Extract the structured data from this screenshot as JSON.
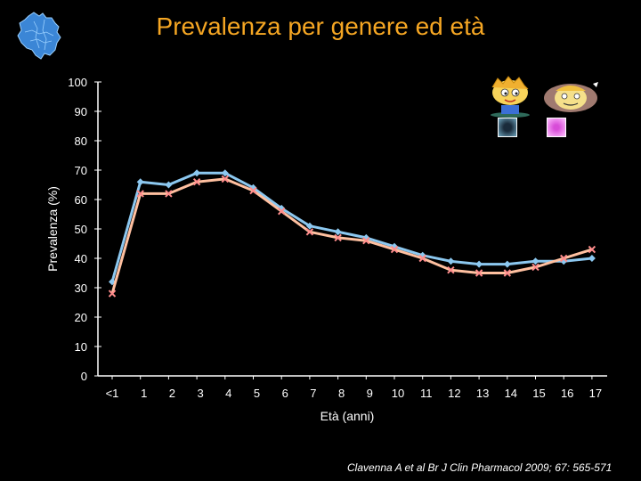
{
  "title": "Prevalenza per genere ed età",
  "citation": "Clavenna A et al Br J Clin Pharmacol 2009; 67: 565-571",
  "icons": {
    "region_map": "lombardy-map-icon",
    "male_legend": "boy-cartoon-icon",
    "female_legend": "girl-cartoon-icon"
  },
  "colors": {
    "background": "#000000",
    "title": "#f5a623",
    "text": "#ffffff",
    "male_series": "#8cc8f0",
    "female_series": "#ffc0a0",
    "female_marker": "#ff8c8c"
  },
  "chart_data": {
    "type": "line",
    "title": "Prevalenza per genere ed età",
    "xlabel": "Età (anni)",
    "ylabel": "Prevalenza (%)",
    "ylim": [
      0,
      100
    ],
    "yticks": [
      "0",
      "10",
      "20",
      "30",
      "40",
      "50",
      "60",
      "70",
      "80",
      "90",
      "100"
    ],
    "grid": false,
    "legend": "top-right",
    "categories": [
      "<1",
      "1",
      "2",
      "3",
      "4",
      "5",
      "6",
      "7",
      "8",
      "9",
      "10",
      "11",
      "12",
      "13",
      "14",
      "15",
      "16",
      "17"
    ],
    "series": [
      {
        "key": "male",
        "legend_symbol": "boy",
        "marker": "diamond",
        "values": [
          32,
          66,
          65,
          69,
          69,
          64,
          57,
          51,
          49,
          47,
          44,
          41,
          39,
          38,
          38,
          39,
          39,
          40
        ]
      },
      {
        "key": "female",
        "legend_symbol": "girl",
        "marker": "x",
        "values": [
          28,
          62,
          62,
          66,
          67,
          63,
          56,
          49,
          47,
          46,
          43,
          40,
          36,
          35,
          35,
          37,
          40,
          43
        ]
      }
    ]
  }
}
